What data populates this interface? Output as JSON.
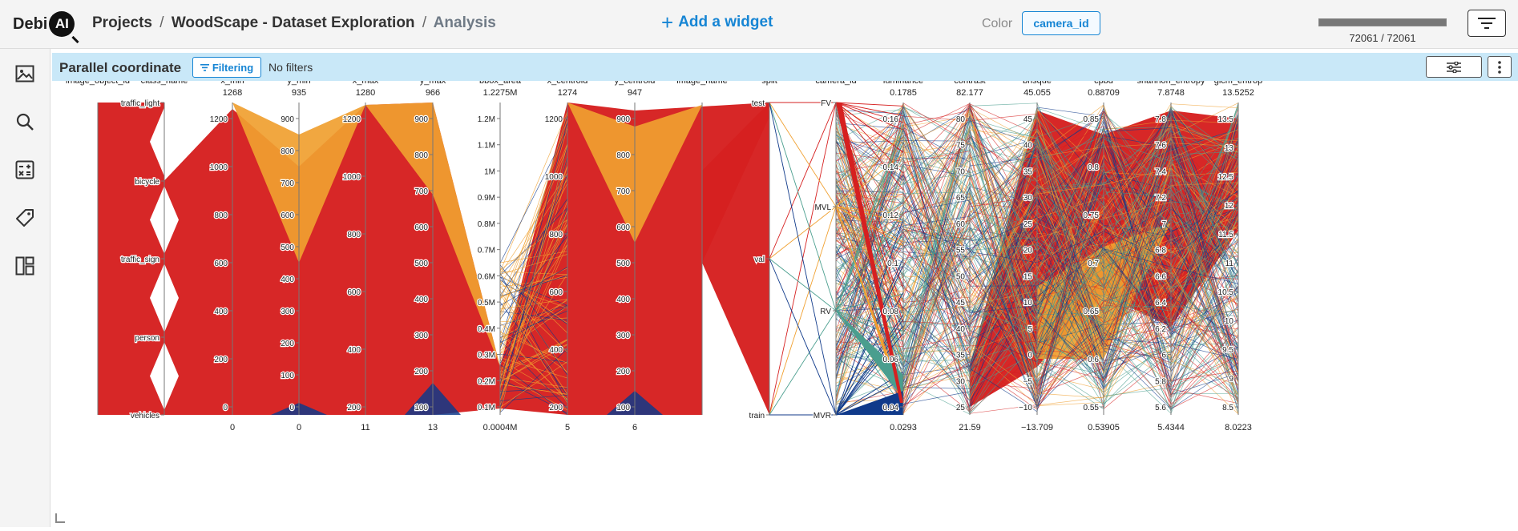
{
  "logo": {
    "text_debi": "Debi",
    "text_ai": "AI"
  },
  "breadcrumb": {
    "projects": "Projects",
    "separator": "/",
    "project": "WoodScape - Dataset Exploration",
    "page": "Analysis"
  },
  "toolbar": {
    "add_widget": "Add a widget",
    "color_label": "Color",
    "color_value": "camera_id",
    "count_text": "72061 / 72061",
    "count_fraction": 1.0
  },
  "sidebar": {
    "items": [
      {
        "icon": "image-icon"
      },
      {
        "icon": "search-icon"
      },
      {
        "icon": "calculator-icon"
      },
      {
        "icon": "tag-icon"
      },
      {
        "icon": "dashboard-layout-icon"
      }
    ]
  },
  "widget": {
    "title": "Parallel coordinate",
    "filtering_label": "Filtering",
    "filter_status": "No filters"
  },
  "colors": {
    "FV": "#d62020",
    "MVL": "#f0a030",
    "RV": "#4a9e8e",
    "MVR": "#103a8a",
    "header_bg": "#c9e8f8",
    "accent": "#1685d4"
  },
  "chart_data": {
    "type": "parallel_coordinates",
    "color_by": "camera_id",
    "axes": [
      {
        "name": "image_object_id",
        "max": "",
        "min": "",
        "ticks": []
      },
      {
        "name": "class_name",
        "max": "",
        "min": "",
        "ticks": [
          "traffic_light",
          "bicycle",
          "traffic_sign",
          "person",
          "vehicles"
        ]
      },
      {
        "name": "x_min",
        "max": "1268",
        "min": "0",
        "ticks": [
          "1200",
          "1000",
          "800",
          "600",
          "400",
          "200",
          "0"
        ]
      },
      {
        "name": "y_min",
        "max": "935",
        "min": "0",
        "ticks": [
          "900",
          "800",
          "700",
          "600",
          "500",
          "400",
          "300",
          "200",
          "100",
          "0"
        ]
      },
      {
        "name": "x_max",
        "max": "1280",
        "min": "11",
        "ticks": [
          "1200",
          "1000",
          "800",
          "600",
          "400",
          "200"
        ]
      },
      {
        "name": "y_max",
        "max": "966",
        "min": "13",
        "ticks": [
          "900",
          "800",
          "700",
          "600",
          "500",
          "400",
          "300",
          "200",
          "100"
        ]
      },
      {
        "name": "bbox_area",
        "max": "1.2275M",
        "min": "0.0004M",
        "ticks": [
          "1.2M",
          "1.1M",
          "1M",
          "0.9M",
          "0.8M",
          "0.7M",
          "0.6M",
          "0.5M",
          "0.4M",
          "0.3M",
          "0.2M",
          "0.1M"
        ]
      },
      {
        "name": "x_centroid",
        "max": "1274",
        "min": "5",
        "ticks": [
          "1200",
          "1000",
          "800",
          "600",
          "400",
          "200"
        ]
      },
      {
        "name": "y_centroid",
        "max": "947",
        "min": "6",
        "ticks": [
          "900",
          "800",
          "700",
          "600",
          "500",
          "400",
          "300",
          "200",
          "100"
        ]
      },
      {
        "name": "image_name",
        "max": "",
        "min": "",
        "ticks": []
      },
      {
        "name": "split",
        "max": "",
        "min": "",
        "ticks": [
          "test",
          "val",
          "train"
        ]
      },
      {
        "name": "camera_id",
        "max": "",
        "min": "",
        "ticks": [
          "FV",
          "MVL",
          "RV",
          "MVR"
        ]
      },
      {
        "name": "luminance",
        "max": "0.1785",
        "min": "0.0293",
        "ticks": [
          "0.16",
          "0.14",
          "0.12",
          "0.1",
          "0.08",
          "0.06",
          "0.04"
        ]
      },
      {
        "name": "contrast",
        "max": "82.177",
        "min": "21.59",
        "ticks": [
          "80",
          "75",
          "70",
          "65",
          "60",
          "55",
          "50",
          "45",
          "40",
          "35",
          "30",
          "25"
        ]
      },
      {
        "name": "brisque",
        "max": "45.055",
        "min": "−13.709",
        "ticks": [
          "45",
          "40",
          "35",
          "30",
          "25",
          "20",
          "15",
          "10",
          "5",
          "0",
          "−5",
          "−10"
        ]
      },
      {
        "name": "cpbd",
        "max": "0.88709",
        "min": "0.53905",
        "ticks": [
          "0.85",
          "0.8",
          "0.75",
          "0.7",
          "0.65",
          "0.6",
          "0.55"
        ]
      },
      {
        "name": "shannon_entropy",
        "max": "7.8748",
        "min": "5.4344",
        "ticks": [
          "7.8",
          "7.6",
          "7.4",
          "7.2",
          "7",
          "6.8",
          "6.6",
          "6.4",
          "6.2",
          "6",
          "5.8",
          "5.6"
        ]
      },
      {
        "name": "glcm_entrop",
        "max": "13.5252",
        "min": "8.0223",
        "ticks": [
          "13.5",
          "13",
          "12.5",
          "12",
          "11.5",
          "11",
          "10.5",
          "10",
          "9.5",
          "9",
          "8.5"
        ]
      }
    ]
  }
}
